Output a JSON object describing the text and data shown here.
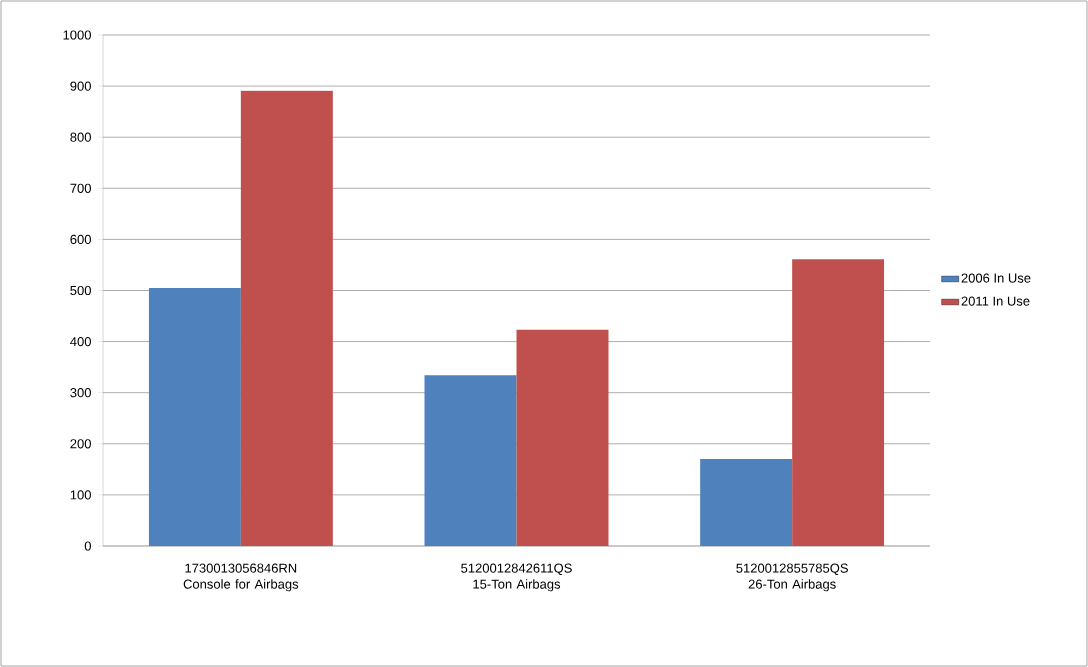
{
  "chart_data": {
    "type": "bar",
    "categories": [
      "1730013056846RN Console for Airbags",
      "5120012842611QS 15-Ton Airbags",
      "5120012855785QS 26-Ton Airbags"
    ],
    "series": [
      {
        "name": "2006 In Use",
        "color": "#4f81bd",
        "values": [
          505,
          334,
          170
        ]
      },
      {
        "name": "2011 In Use",
        "color": "#c0504d",
        "values": [
          891,
          423,
          561
        ]
      }
    ],
    "ylim": [
      0,
      1000
    ],
    "yticks": [
      0,
      100,
      200,
      300,
      400,
      500,
      600,
      700,
      800,
      900,
      1000
    ],
    "grid": "y",
    "legend": "right"
  }
}
